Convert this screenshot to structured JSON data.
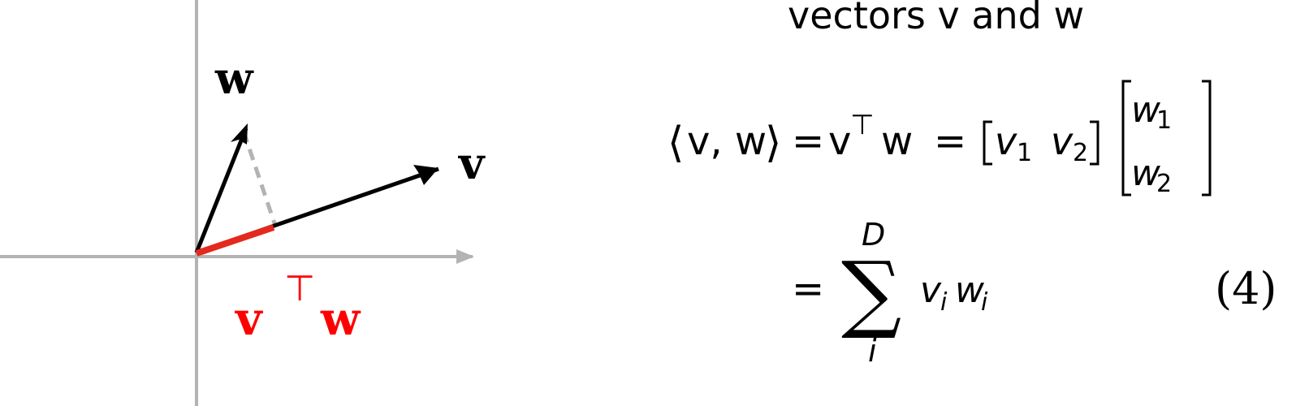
{
  "diagram": {
    "label_w": "w",
    "label_v": "v",
    "projection_v": "v",
    "projection_t": "⊤",
    "projection_w": "w",
    "colors": {
      "axis": "#b3b3b3",
      "vector": "#000000",
      "projection": "#e32a1d",
      "projection_text": "#ff0000",
      "dashed": "#b3b3b3"
    }
  },
  "math": {
    "title": "vectors v and w",
    "line1": {
      "lhs_open": "⟨",
      "lhs_vw": "v, w",
      "lhs_close": "⟩",
      "eq1": "=",
      "v": "v",
      "T": "⊤",
      "w": "w",
      "eq2": "=",
      "row_v1": "v",
      "row_v1_sub": "1",
      "row_v2": "v",
      "row_v2_sub": "2",
      "col_w1": "w",
      "col_w1_sub": "1",
      "col_w2": "w",
      "col_w2_sub": "2"
    },
    "line2": {
      "eq": "=",
      "sum": "∑",
      "upper": "D",
      "lower": "i",
      "vi": "v",
      "vi_sub": "i",
      "wi": "w",
      "wi_sub": "i"
    },
    "eq_number": "(4)"
  }
}
